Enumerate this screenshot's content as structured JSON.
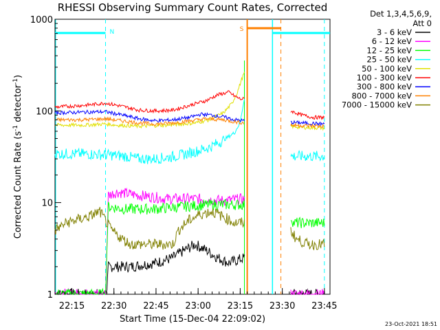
{
  "chart_data": {
    "type": "line",
    "title": "RHESSI Observing Summary Count Rates, Corrected",
    "ylabel_main": "Corrected Count Rate (s",
    "ylabel_sup1": "-1",
    "ylabel_mid": " detector",
    "ylabel_sup2": "-1",
    "ylabel_end": ")",
    "xlabel": "Start Time (15-Dec-04 22:09:02)",
    "yscale": "log",
    "ylim": [
      1,
      1000
    ],
    "xlim_minutes": [
      0,
      98
    ],
    "x_ticks": [
      {
        "label": "22:15",
        "t": 6
      },
      {
        "label": "22:30",
        "t": 21
      },
      {
        "label": "22:45",
        "t": 36
      },
      {
        "label": "23:00",
        "t": 51
      },
      {
        "label": "23:15",
        "t": 66
      },
      {
        "label": "23:30",
        "t": 81
      },
      {
        "label": "23:45",
        "t": 96
      }
    ],
    "y_ticks": [
      {
        "label": "1",
        "v": 1
      },
      {
        "label": "10",
        "v": 10
      },
      {
        "label": "100",
        "v": 100
      },
      {
        "label": "1000",
        "v": 1000
      }
    ],
    "legend_header": [
      "Det 1,3,4,5,6,9,",
      "Att 0"
    ],
    "legend": [
      {
        "label": "3 - 6 keV",
        "color": "#000000"
      },
      {
        "label": "6 - 12 keV",
        "color": "#ff00ff"
      },
      {
        "label": "12 - 25 keV",
        "color": "#00ff00"
      },
      {
        "label": "25 - 50 keV",
        "color": "#00ffff"
      },
      {
        "label": "50 - 100 keV",
        "color": "#e0e000"
      },
      {
        "label": "100 - 300 keV",
        "color": "#ff0000"
      },
      {
        "label": "300 - 800 keV",
        "color": "#0000ff"
      },
      {
        "label": "800 - 7000 keV",
        "color": "#ff8000"
      },
      {
        "label": "7000 - 15000 keV",
        "color": "#808000"
      }
    ],
    "flags": [
      {
        "label": "N",
        "color": "#00ffff"
      },
      {
        "label": "S",
        "color": "#ff8000"
      }
    ],
    "gaps_minutes": [
      [
        67.5,
        84.0
      ]
    ],
    "series": [
      {
        "name": "3 - 6 keV",
        "color": "#000000",
        "x": [
          0,
          18.5,
          19,
          27,
          36,
          42,
          46,
          50,
          54,
          58,
          62,
          67.5,
          84,
          96
        ],
        "y": [
          1,
          1,
          2,
          2,
          2.2,
          2.5,
          3,
          3.5,
          3,
          2.5,
          2.2,
          2.5,
          1,
          1
        ]
      },
      {
        "name": "6 - 12 keV",
        "color": "#ff00ff",
        "x": [
          0,
          18,
          19,
          22,
          30,
          40,
          50,
          60,
          67.5,
          84,
          96
        ],
        "y": [
          1,
          1,
          12,
          13,
          12,
          11,
          11,
          10.5,
          11,
          1,
          1
        ]
      },
      {
        "name": "12 - 25 keV",
        "color": "#00ff00",
        "x": [
          0,
          18,
          19,
          25,
          35,
          45,
          55,
          62,
          67.5,
          84,
          85,
          96
        ],
        "y": [
          1,
          1,
          9,
          8.5,
          8.5,
          9,
          9.5,
          9.5,
          9.5,
          7,
          6,
          6
        ]
      },
      {
        "name": "25 - 50 keV",
        "color": "#00ffff",
        "x": [
          0,
          10,
          20,
          25,
          30,
          35,
          40,
          45,
          50,
          55,
          60,
          64,
          66,
          67.5,
          84,
          90,
          96
        ],
        "y": [
          34,
          34,
          33,
          32,
          30,
          30,
          31,
          33,
          36,
          40,
          48,
          58,
          75,
          140,
          32,
          32,
          32
        ]
      },
      {
        "name": "50 - 100 keV",
        "color": "#e0e000",
        "x": [
          0,
          10,
          18,
          22,
          30,
          40,
          50,
          55,
          60,
          63,
          65,
          66.5,
          67.5,
          84,
          88,
          96
        ],
        "y": [
          70,
          70,
          72,
          70,
          68,
          70,
          74,
          80,
          95,
          120,
          160,
          220,
          260,
          68,
          66,
          65
        ]
      },
      {
        "name": "100 - 300 keV",
        "color": "#ff0000",
        "x": [
          0,
          10,
          14,
          18,
          24,
          30,
          36,
          42,
          48,
          54,
          58,
          62,
          64,
          66,
          67.5,
          84,
          88,
          92,
          96
        ],
        "y": [
          110,
          115,
          118,
          122,
          112,
          102,
          100,
          102,
          115,
          130,
          150,
          160,
          145,
          135,
          135,
          100,
          90,
          85,
          85
        ]
      },
      {
        "name": "300 - 800 keV",
        "color": "#0000ff",
        "x": [
          0,
          10,
          18,
          24,
          30,
          36,
          42,
          48,
          52,
          56,
          60,
          64,
          67.5,
          84,
          96
        ],
        "y": [
          95,
          97,
          98,
          90,
          82,
          78,
          80,
          85,
          92,
          90,
          86,
          80,
          78,
          75,
          72
        ]
      },
      {
        "name": "800 - 7000 keV",
        "color": "#ff8000",
        "x": [
          0,
          10,
          18,
          24,
          30,
          36,
          42,
          48,
          54,
          60,
          64,
          67.5,
          84,
          96
        ],
        "y": [
          80,
          80,
          82,
          78,
          74,
          72,
          74,
          78,
          82,
          80,
          76,
          74,
          70,
          68
        ]
      },
      {
        "name": "7000 - 15000 keV",
        "color": "#808000",
        "x": [
          0,
          4,
          8,
          12,
          16,
          20,
          24,
          27,
          30,
          36,
          42,
          44,
          48,
          52,
          56,
          60,
          64,
          67.5,
          84,
          86,
          90,
          96
        ],
        "y": [
          5,
          6,
          6.5,
          7,
          8,
          5,
          4,
          3.5,
          3.5,
          3.5,
          3.5,
          5,
          6.5,
          7.5,
          8,
          7,
          6,
          6,
          5,
          4,
          3.5,
          3.5
        ]
      }
    ]
  },
  "footer": {
    "timestamp": "23-Oct-2021 18:51"
  }
}
